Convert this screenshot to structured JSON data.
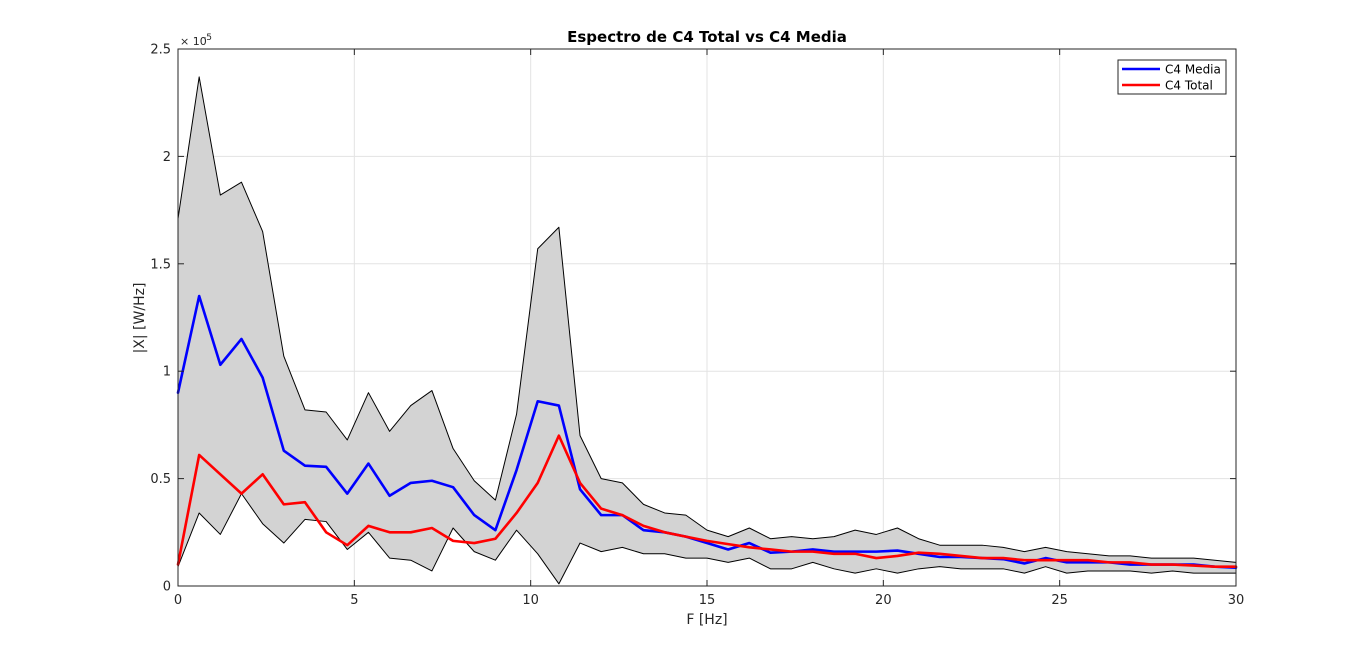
{
  "chart_data": {
    "type": "line",
    "title": "Espectro de C4 Total vs C4 Media",
    "xlabel": "F [Hz]",
    "ylabel": "|X| [W/Hz]",
    "y_exponent_label": "× 10",
    "y_exponent_power": "-5",
    "xlim": [
      0,
      30
    ],
    "ylim": [
      0,
      2.5
    ],
    "x_ticks": [
      0,
      5,
      10,
      15,
      20,
      25,
      30
    ],
    "x_tick_labels": [
      "0",
      "5",
      "10",
      "15",
      "20",
      "25",
      "30"
    ],
    "y_ticks": [
      0,
      0.5,
      1,
      1.5,
      2,
      2.5
    ],
    "y_tick_labels": [
      "0",
      "0.5",
      "1",
      "1.5",
      "2",
      "2.5"
    ],
    "grid": true,
    "legend_position": "top-right",
    "x": [
      0,
      0.6,
      1.2,
      1.8,
      2.4,
      3.0,
      3.6,
      4.2,
      4.8,
      5.4,
      6.0,
      6.6,
      7.2,
      7.8,
      8.4,
      9.0,
      9.6,
      10.2,
      10.8,
      11.4,
      12.0,
      12.6,
      13.2,
      13.8,
      14.4,
      15.0,
      15.6,
      16.2,
      16.8,
      17.4,
      18.0,
      18.6,
      19.2,
      19.8,
      20.4,
      21.0,
      21.6,
      22.2,
      22.8,
      23.4,
      24.0,
      24.6,
      25.2,
      25.8,
      26.4,
      27.0,
      27.6,
      28.2,
      28.8,
      29.4,
      30.0
    ],
    "band": {
      "fill_color": "#d3d3d3",
      "edge_color": "#000000",
      "upper": [
        1.71,
        2.37,
        1.82,
        1.88,
        1.65,
        1.07,
        0.82,
        0.81,
        0.68,
        0.9,
        0.72,
        0.84,
        0.91,
        0.64,
        0.49,
        0.4,
        0.8,
        1.57,
        1.67,
        0.7,
        0.5,
        0.48,
        0.38,
        0.34,
        0.33,
        0.26,
        0.23,
        0.27,
        0.22,
        0.23,
        0.22,
        0.23,
        0.26,
        0.24,
        0.27,
        0.22,
        0.19,
        0.19,
        0.19,
        0.18,
        0.16,
        0.18,
        0.16,
        0.15,
        0.14,
        0.14,
        0.13,
        0.13,
        0.13,
        0.12,
        0.11
      ],
      "lower": [
        0.09,
        0.34,
        0.24,
        0.43,
        0.29,
        0.2,
        0.31,
        0.3,
        0.17,
        0.25,
        0.13,
        0.12,
        0.07,
        0.27,
        0.16,
        0.12,
        0.26,
        0.15,
        0.01,
        0.2,
        0.16,
        0.18,
        0.15,
        0.15,
        0.13,
        0.13,
        0.11,
        0.13,
        0.08,
        0.08,
        0.11,
        0.08,
        0.06,
        0.08,
        0.06,
        0.08,
        0.09,
        0.08,
        0.08,
        0.08,
        0.06,
        0.09,
        0.06,
        0.07,
        0.07,
        0.07,
        0.06,
        0.07,
        0.06,
        0.06,
        0.06
      ]
    },
    "series": [
      {
        "name": "C4 Media",
        "color": "#0000ff",
        "values": [
          0.9,
          1.35,
          1.03,
          1.15,
          0.97,
          0.63,
          0.56,
          0.555,
          0.43,
          0.57,
          0.42,
          0.48,
          0.49,
          0.46,
          0.33,
          0.26,
          0.54,
          0.86,
          0.84,
          0.45,
          0.33,
          0.33,
          0.26,
          0.25,
          0.23,
          0.2,
          0.17,
          0.2,
          0.155,
          0.16,
          0.17,
          0.16,
          0.16,
          0.16,
          0.165,
          0.15,
          0.135,
          0.135,
          0.13,
          0.125,
          0.105,
          0.13,
          0.11,
          0.11,
          0.11,
          0.1,
          0.1,
          0.1,
          0.1,
          0.09,
          0.085
        ]
      },
      {
        "name": "C4 Total",
        "color": "#ff0000",
        "values": [
          0.1,
          0.61,
          0.52,
          0.43,
          0.52,
          0.38,
          0.39,
          0.25,
          0.19,
          0.28,
          0.25,
          0.25,
          0.27,
          0.21,
          0.2,
          0.22,
          0.34,
          0.48,
          0.7,
          0.48,
          0.36,
          0.33,
          0.28,
          0.25,
          0.23,
          0.21,
          0.195,
          0.18,
          0.17,
          0.16,
          0.16,
          0.15,
          0.15,
          0.13,
          0.14,
          0.155,
          0.15,
          0.14,
          0.13,
          0.13,
          0.12,
          0.12,
          0.12,
          0.12,
          0.11,
          0.11,
          0.1,
          0.1,
          0.095,
          0.09,
          0.09
        ]
      }
    ]
  }
}
